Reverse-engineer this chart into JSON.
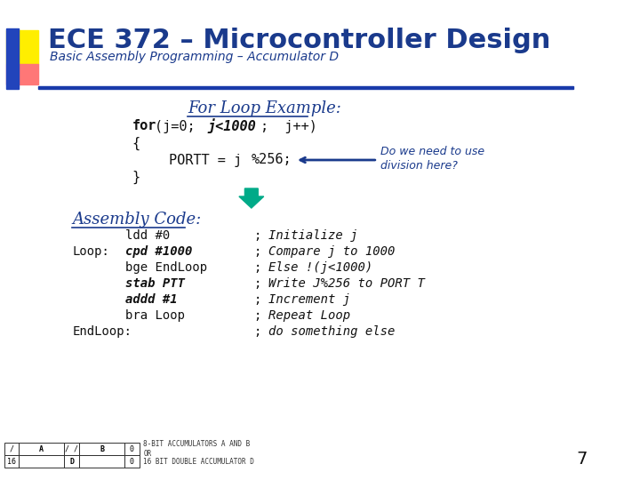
{
  "title": "ECE 372 – Microcontroller Design",
  "subtitle": "Basic Assembly Programming – Accumulator D",
  "bg_color": "#ffffff",
  "title_color": "#1a3a8c",
  "subtitle_color": "#1a3a8c",
  "for_loop_label": "For Loop Example:",
  "assembly_label": "Assembly Code:",
  "arrow_color": "#00aa88",
  "page_number": "7",
  "asm_data": [
    [
      "",
      false,
      "ldd",
      false,
      "#0",
      false,
      "Initialize j"
    ],
    [
      "Loop:",
      false,
      "cpd",
      true,
      "#1000",
      true,
      "Compare j to 1000"
    ],
    [
      "",
      false,
      "bge EndLoop",
      false,
      "",
      false,
      "Else !(j<1000)"
    ],
    [
      "",
      false,
      "stab",
      true,
      "PTT",
      true,
      "Write J%256 to PORT T"
    ],
    [
      "",
      false,
      "addd",
      true,
      "#1",
      true,
      "Increment j"
    ],
    [
      "",
      false,
      "bra Loop",
      false,
      "",
      false,
      "Repeat Loop"
    ],
    [
      "EndLoop:",
      false,
      "",
      false,
      "",
      false,
      "do something else"
    ]
  ]
}
